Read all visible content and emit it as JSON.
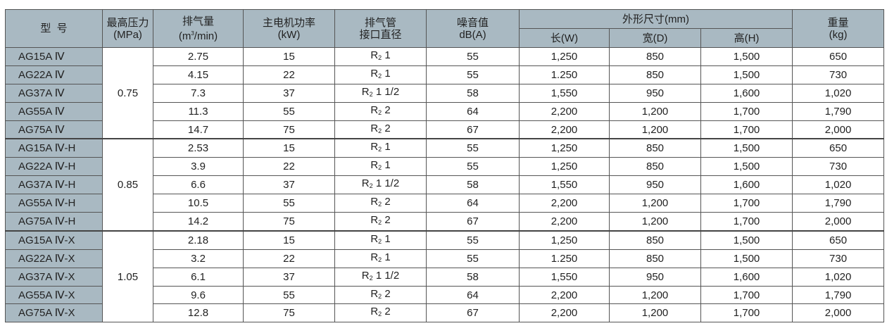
{
  "headers": {
    "model": "型  号",
    "pressure": "最高压力",
    "pressure_unit": "(MPa)",
    "flow": "排气量",
    "flow_unit_pre": "(m",
    "flow_unit_sup": "3",
    "flow_unit_post": "/min)",
    "power": "主电机功率",
    "power_unit": "(kW)",
    "pipe1": "排气管",
    "pipe2": "接口直径",
    "noise": "噪音值",
    "noise_unit": "dB(A)",
    "dims": "外形尺寸(mm)",
    "length": "长(W)",
    "width": "宽(D)",
    "height": "高(H)",
    "weight": "重量",
    "weight_unit": "(kg)"
  },
  "groups": [
    {
      "pressure": "0.75",
      "rows": [
        [
          "AG15A Ⅳ",
          "2.75",
          "15",
          "1",
          "55",
          "1,250",
          "850",
          "1,500",
          "650"
        ],
        [
          "AG22A Ⅳ",
          "4.15",
          "22",
          "1",
          "55",
          "1.250",
          "850",
          "1,500",
          "730"
        ],
        [
          "AG37A Ⅳ",
          "7.3",
          "37",
          "1 1/2",
          "58",
          "1,550",
          "950",
          "1,600",
          "1,020"
        ],
        [
          "AG55A Ⅳ",
          "11.3",
          "55",
          "2",
          "64",
          "2,200",
          "1,200",
          "1,700",
          "1,790"
        ],
        [
          "AG75A Ⅳ",
          "14.7",
          "75",
          "2",
          "67",
          "2,200",
          "1,200",
          "1,700",
          "2,000"
        ]
      ]
    },
    {
      "pressure": "0.85",
      "rows": [
        [
          "AG15A Ⅳ-H",
          "2.53",
          "15",
          "1",
          "55",
          "1,250",
          "850",
          "1,500",
          "650"
        ],
        [
          "AG22A Ⅳ-H",
          "3.9",
          "22",
          "1",
          "55",
          "1,250",
          "850",
          "1,500",
          "730"
        ],
        [
          "AG37A Ⅳ-H",
          "6.6",
          "37",
          "1 1/2",
          "58",
          "1,550",
          "950",
          "1,600",
          "1,020"
        ],
        [
          "AG55A Ⅳ-H",
          "10.5",
          "55",
          "2",
          "64",
          "2,200",
          "1,200",
          "1,700",
          "1,790"
        ],
        [
          "AG75A Ⅳ-H",
          "14.2",
          "75",
          "2",
          "67",
          "2,200",
          "1,200",
          "1,700",
          "2,000"
        ]
      ]
    },
    {
      "pressure": "1.05",
      "rows": [
        [
          "AG15A Ⅳ-X",
          "2.18",
          "15",
          "1",
          "55",
          "1,250",
          "850",
          "1,500",
          "650"
        ],
        [
          "AG22A Ⅳ-X",
          "3.2",
          "22",
          "1",
          "55",
          "1.250",
          "850",
          "1,500",
          "730"
        ],
        [
          "AG37A Ⅳ-X",
          "6.1",
          "37",
          "1 1/2",
          "58",
          "1,550",
          "950",
          "1,600",
          "1,020"
        ],
        [
          "AG55A Ⅳ-X",
          "9.6",
          "55",
          "2",
          "64",
          "2,200",
          "1,200",
          "1,700",
          "1,790"
        ],
        [
          "AG75A Ⅳ-X",
          "12.8",
          "75",
          "2",
          "67",
          "2,200",
          "1,200",
          "1,700",
          "2,000"
        ]
      ]
    }
  ],
  "pipe_prefix": "R",
  "pipe_sub": "2"
}
